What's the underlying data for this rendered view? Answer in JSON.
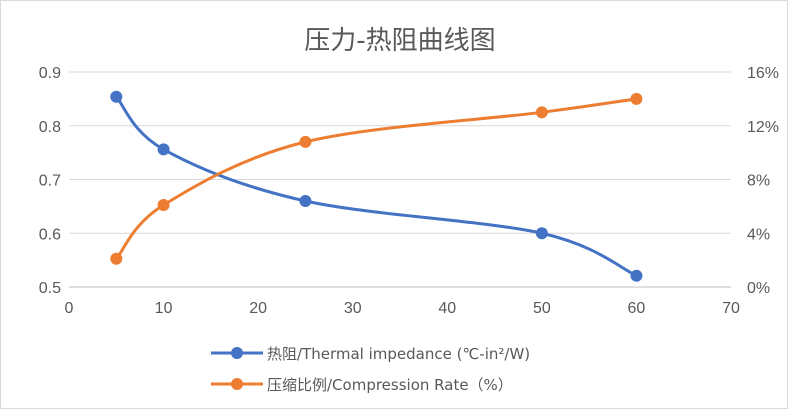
{
  "chart_data": {
    "type": "line",
    "title": "压力-热阻曲线图",
    "xlabel": "",
    "ylabel": "",
    "y2label": "",
    "xlim": [
      0,
      70
    ],
    "ylim": [
      0.5,
      0.9
    ],
    "y2lim": [
      0,
      0.16
    ],
    "x_ticks": [
      0,
      10,
      20,
      30,
      40,
      50,
      60,
      70
    ],
    "x_tick_labels": [
      "0",
      "10",
      "20",
      "30",
      "40",
      "50",
      "60",
      "70"
    ],
    "y_ticks": [
      0.5,
      0.6,
      0.7,
      0.8,
      0.9
    ],
    "y_tick_labels": [
      "0.5",
      "0.6",
      "0.7",
      "0.8",
      "0.9"
    ],
    "y2_ticks": [
      0,
      0.04,
      0.08,
      0.12,
      0.16
    ],
    "y2_tick_labels": [
      "0%",
      "4%",
      "8%",
      "12%",
      "16%"
    ],
    "grid": true,
    "legend_position": "bottom",
    "smooth": true,
    "series": [
      {
        "name": "热阻/Thermal impedance (℃-in²/W)",
        "axis": "left",
        "color": "#4472C4",
        "x": [
          5,
          10,
          25,
          50,
          60
        ],
        "values": [
          0.854,
          0.756,
          0.66,
          0.6,
          0.521
        ]
      },
      {
        "name": "压缩比例/Compression Rate（%）",
        "axis": "right",
        "color": "#ED7D31",
        "x": [
          5,
          10,
          25,
          50,
          60
        ],
        "values": [
          0.021,
          0.061,
          0.108,
          0.13,
          0.14
        ]
      }
    ]
  }
}
